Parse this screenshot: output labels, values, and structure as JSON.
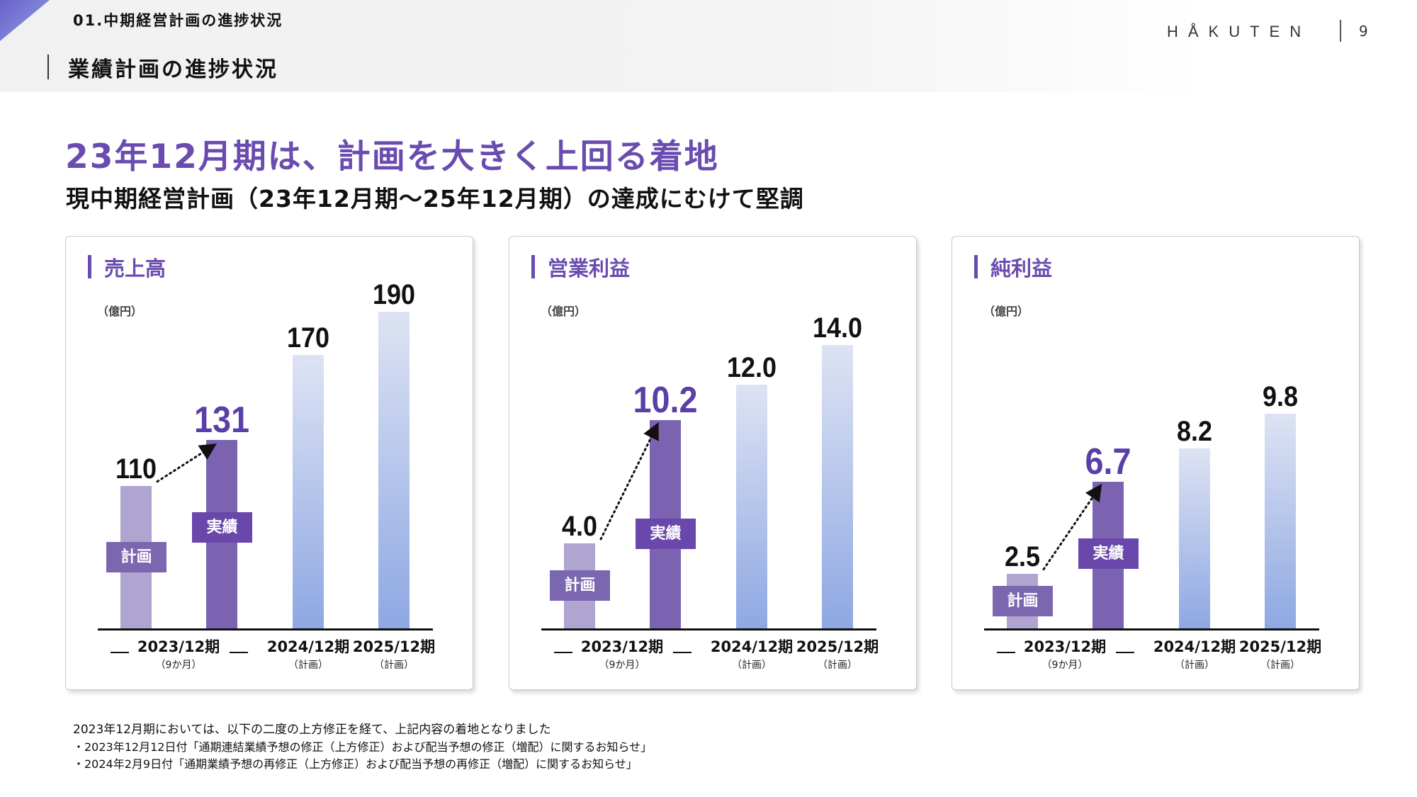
{
  "header": {
    "section": "01.中期経営計画の進捗状況",
    "page_title": "業績計画の進捗状況",
    "logo": "HÅKUTEN",
    "page_number": "9"
  },
  "headline": "23年12月期は、計画を大きく上回る着地",
  "subheadline": "現中期経営計画（23年12月期〜25年12月期）の達成にむけて堅調",
  "colors": {
    "accent": "#6a4cb0",
    "plan_2023": "#b0a4d0",
    "actual_2023": "#7b63b2",
    "future_plan_top": "#dde3f3",
    "future_plan_bottom": "#8ea8e3"
  },
  "chart_data": [
    {
      "type": "bar",
      "title": "売上高",
      "unit": "（億円）",
      "categories": [
        "2023/12期 計画",
        "2023/12期 実績",
        "2024/12期",
        "2025/12期"
      ],
      "value_labels": [
        "110",
        "131",
        "170",
        "190"
      ],
      "values": [
        110,
        131,
        170,
        190
      ],
      "tags": [
        "計画",
        "実績"
      ],
      "x_labels": [
        "2023/12期",
        "2024/12期",
        "2025/12期"
      ],
      "x_sublabels": [
        "（9か月）",
        "（計画）",
        "（計画）"
      ]
    },
    {
      "type": "bar",
      "title": "営業利益",
      "unit": "（億円）",
      "categories": [
        "2023/12期 計画",
        "2023/12期 実績",
        "2024/12期",
        "2025/12期"
      ],
      "value_labels": [
        "4.0",
        "10.2",
        "12.0",
        "14.0"
      ],
      "values": [
        4.0,
        10.2,
        12.0,
        14.0
      ],
      "tags": [
        "計画",
        "実績"
      ],
      "x_labels": [
        "2023/12期",
        "2024/12期",
        "2025/12期"
      ],
      "x_sublabels": [
        "（9か月）",
        "（計画）",
        "（計画）"
      ]
    },
    {
      "type": "bar",
      "title": "純利益",
      "unit": "（億円）",
      "categories": [
        "2023/12期 計画",
        "2023/12期 実績",
        "2024/12期",
        "2025/12期"
      ],
      "value_labels": [
        "2.5",
        "6.7",
        "8.2",
        "9.8"
      ],
      "values": [
        2.5,
        6.7,
        8.2,
        9.8
      ],
      "tags": [
        "計画",
        "実績"
      ],
      "x_labels": [
        "2023/12期",
        "2024/12期",
        "2025/12期"
      ],
      "x_sublabels": [
        "（9か月）",
        "（計画）",
        "（計画）"
      ]
    }
  ],
  "footer": {
    "note": "2023年12月期においては、以下の二度の上方修正を経て、上記内容の着地となりました",
    "items": [
      "・2023年12月12日付「通期連結業績予想の修正（上方修正）および配当予想の修正（増配）に関するお知らせ」",
      "・2024年2月9日付「通期業績予想の再修正（上方修正）および配当予想の再修正（増配）に関するお知らせ」"
    ]
  }
}
